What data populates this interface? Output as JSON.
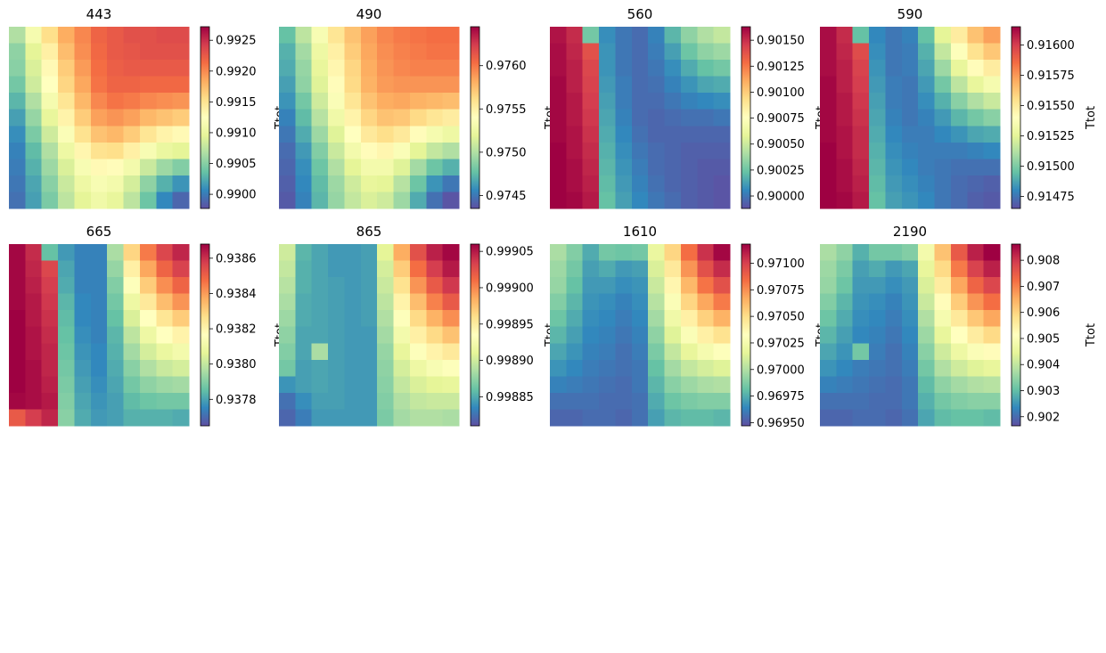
{
  "colormap": {
    "name": "Spectral_r",
    "stops": [
      "#5e4fa2",
      "#3288bd",
      "#66c2a5",
      "#abdda4",
      "#e6f598",
      "#ffffbf",
      "#fee08b",
      "#fdae61",
      "#f46d43",
      "#d53e4f",
      "#9e0142"
    ]
  },
  "chart_data": [
    {
      "type": "heatmap",
      "title": "443",
      "colorbar_label": "Ttot",
      "vmin": 0.98977,
      "vmax": 0.99272,
      "ticks": [
        "0.9900",
        "0.9905",
        "0.9910",
        "0.9915",
        "0.9920",
        "0.9925"
      ],
      "grid": [
        [
          0.31,
          0.46,
          0.6,
          0.7,
          0.76,
          0.82,
          0.84,
          0.86,
          0.86,
          0.87,
          0.87
        ],
        [
          0.26,
          0.4,
          0.55,
          0.67,
          0.75,
          0.81,
          0.84,
          0.85,
          0.86,
          0.86,
          0.86
        ],
        [
          0.25,
          0.38,
          0.52,
          0.64,
          0.73,
          0.8,
          0.83,
          0.84,
          0.84,
          0.84,
          0.84
        ],
        [
          0.22,
          0.36,
          0.5,
          0.62,
          0.71,
          0.79,
          0.82,
          0.82,
          0.81,
          0.81,
          0.81
        ],
        [
          0.18,
          0.31,
          0.46,
          0.58,
          0.68,
          0.76,
          0.79,
          0.78,
          0.76,
          0.75,
          0.74
        ],
        [
          0.14,
          0.27,
          0.41,
          0.54,
          0.64,
          0.72,
          0.74,
          0.72,
          0.68,
          0.66,
          0.64
        ],
        [
          0.11,
          0.23,
          0.36,
          0.48,
          0.59,
          0.66,
          0.68,
          0.64,
          0.58,
          0.54,
          0.52
        ],
        [
          0.09,
          0.19,
          0.31,
          0.43,
          0.53,
          0.59,
          0.6,
          0.55,
          0.47,
          0.42,
          0.4
        ],
        [
          0.08,
          0.17,
          0.28,
          0.38,
          0.47,
          0.52,
          0.51,
          0.45,
          0.35,
          0.28,
          0.24
        ],
        [
          0.07,
          0.15,
          0.25,
          0.35,
          0.43,
          0.47,
          0.45,
          0.37,
          0.26,
          0.17,
          0.12
        ],
        [
          0.06,
          0.14,
          0.23,
          0.33,
          0.4,
          0.44,
          0.41,
          0.33,
          0.21,
          0.1,
          0.04
        ]
      ]
    },
    {
      "type": "heatmap",
      "title": "490",
      "colorbar_label": "Ttot",
      "vmin": 0.97435,
      "vmax": 0.97645,
      "ticks": [
        "0.9745",
        "0.9750",
        "0.9755",
        "0.9760"
      ],
      "grid": [
        [
          0.2,
          0.33,
          0.47,
          0.58,
          0.66,
          0.72,
          0.76,
          0.78,
          0.79,
          0.8,
          0.8
        ],
        [
          0.17,
          0.29,
          0.43,
          0.55,
          0.64,
          0.71,
          0.75,
          0.77,
          0.78,
          0.79,
          0.79
        ],
        [
          0.16,
          0.27,
          0.41,
          0.53,
          0.62,
          0.7,
          0.74,
          0.76,
          0.77,
          0.77,
          0.77
        ],
        [
          0.14,
          0.26,
          0.39,
          0.51,
          0.61,
          0.69,
          0.73,
          0.74,
          0.74,
          0.74,
          0.74
        ],
        [
          0.12,
          0.22,
          0.36,
          0.48,
          0.58,
          0.66,
          0.7,
          0.71,
          0.69,
          0.68,
          0.67
        ],
        [
          0.09,
          0.19,
          0.32,
          0.44,
          0.54,
          0.62,
          0.66,
          0.65,
          0.61,
          0.58,
          0.56
        ],
        [
          0.07,
          0.16,
          0.28,
          0.39,
          0.5,
          0.57,
          0.6,
          0.57,
          0.51,
          0.46,
          0.43
        ],
        [
          0.05,
          0.13,
          0.24,
          0.35,
          0.45,
          0.51,
          0.53,
          0.48,
          0.4,
          0.34,
          0.31
        ],
        [
          0.04,
          0.11,
          0.21,
          0.31,
          0.4,
          0.45,
          0.45,
          0.39,
          0.29,
          0.21,
          0.17
        ],
        [
          0.03,
          0.1,
          0.19,
          0.28,
          0.36,
          0.41,
          0.4,
          0.32,
          0.21,
          0.12,
          0.07
        ],
        [
          0.02,
          0.09,
          0.18,
          0.27,
          0.34,
          0.38,
          0.36,
          0.28,
          0.16,
          0.06,
          0.01
        ]
      ]
    },
    {
      "type": "heatmap",
      "title": "560",
      "colorbar_label": "Ttot",
      "vmin": 0.89988,
      "vmax": 0.90163,
      "ticks": [
        "0.90000",
        "0.90025",
        "0.90050",
        "0.90075",
        "0.90100",
        "0.90125",
        "0.90150"
      ],
      "grid": [
        [
          0.97,
          0.93,
          0.22,
          0.11,
          0.07,
          0.05,
          0.09,
          0.18,
          0.26,
          0.31,
          0.34
        ],
        [
          0.98,
          0.94,
          0.86,
          0.12,
          0.07,
          0.05,
          0.08,
          0.14,
          0.21,
          0.26,
          0.28
        ],
        [
          0.98,
          0.95,
          0.88,
          0.12,
          0.07,
          0.05,
          0.07,
          0.11,
          0.16,
          0.2,
          0.22
        ],
        [
          0.99,
          0.95,
          0.89,
          0.13,
          0.08,
          0.05,
          0.06,
          0.09,
          0.12,
          0.15,
          0.16
        ],
        [
          0.99,
          0.96,
          0.9,
          0.14,
          0.08,
          0.05,
          0.05,
          0.07,
          0.09,
          0.1,
          0.11
        ],
        [
          0.99,
          0.96,
          0.91,
          0.15,
          0.09,
          0.05,
          0.04,
          0.05,
          0.06,
          0.06,
          0.07
        ],
        [
          0.99,
          0.97,
          0.92,
          0.16,
          0.1,
          0.06,
          0.04,
          0.04,
          0.04,
          0.04,
          0.04
        ],
        [
          1.0,
          0.97,
          0.93,
          0.17,
          0.11,
          0.07,
          0.05,
          0.04,
          0.03,
          0.03,
          0.03
        ],
        [
          1.0,
          0.98,
          0.94,
          0.18,
          0.12,
          0.08,
          0.05,
          0.04,
          0.03,
          0.02,
          0.02
        ],
        [
          1.0,
          0.98,
          0.95,
          0.19,
          0.13,
          0.09,
          0.06,
          0.04,
          0.03,
          0.02,
          0.01
        ],
        [
          1.0,
          0.99,
          0.96,
          0.2,
          0.14,
          0.1,
          0.07,
          0.05,
          0.03,
          0.02,
          0.01
        ]
      ]
    },
    {
      "type": "heatmap",
      "title": "590",
      "colorbar_label": "Ttot",
      "vmin": 0.91465,
      "vmax": 0.91615,
      "ticks": [
        "0.91475",
        "0.91500",
        "0.91525",
        "0.91550",
        "0.91575",
        "0.91600"
      ],
      "grid": [
        [
          0.98,
          0.93,
          0.2,
          0.1,
          0.07,
          0.09,
          0.2,
          0.4,
          0.56,
          0.66,
          0.72
        ],
        [
          0.98,
          0.94,
          0.87,
          0.11,
          0.07,
          0.08,
          0.17,
          0.34,
          0.49,
          0.59,
          0.65
        ],
        [
          0.98,
          0.95,
          0.89,
          0.12,
          0.07,
          0.08,
          0.15,
          0.28,
          0.41,
          0.51,
          0.56
        ],
        [
          0.99,
          0.95,
          0.9,
          0.13,
          0.08,
          0.07,
          0.13,
          0.22,
          0.33,
          0.41,
          0.46
        ],
        [
          0.99,
          0.96,
          0.91,
          0.14,
          0.08,
          0.07,
          0.11,
          0.17,
          0.25,
          0.31,
          0.35
        ],
        [
          0.99,
          0.96,
          0.92,
          0.15,
          0.09,
          0.07,
          0.09,
          0.13,
          0.18,
          0.22,
          0.25
        ],
        [
          0.99,
          0.97,
          0.93,
          0.16,
          0.1,
          0.08,
          0.08,
          0.1,
          0.12,
          0.15,
          0.16
        ],
        [
          1.0,
          0.97,
          0.93,
          0.17,
          0.11,
          0.09,
          0.08,
          0.08,
          0.08,
          0.09,
          0.1
        ],
        [
          1.0,
          0.98,
          0.94,
          0.18,
          0.12,
          0.1,
          0.08,
          0.07,
          0.06,
          0.06,
          0.06
        ],
        [
          1.0,
          0.98,
          0.95,
          0.19,
          0.13,
          0.11,
          0.09,
          0.07,
          0.05,
          0.04,
          0.03
        ],
        [
          1.0,
          0.99,
          0.96,
          0.2,
          0.14,
          0.12,
          0.1,
          0.07,
          0.05,
          0.03,
          0.02
        ]
      ]
    },
    {
      "type": "heatmap",
      "title": "665",
      "colorbar_label": "Ttot",
      "vmin": 0.93765,
      "vmax": 0.93868,
      "ticks": [
        "0.9378",
        "0.9380",
        "0.9382",
        "0.9384",
        "0.9386"
      ],
      "grid": [
        [
          0.99,
          0.93,
          0.2,
          0.13,
          0.09,
          0.09,
          0.3,
          0.62,
          0.78,
          0.88,
          0.94
        ],
        [
          0.99,
          0.94,
          0.88,
          0.15,
          0.09,
          0.09,
          0.27,
          0.55,
          0.71,
          0.82,
          0.89
        ],
        [
          0.99,
          0.95,
          0.9,
          0.16,
          0.09,
          0.09,
          0.24,
          0.49,
          0.64,
          0.75,
          0.82
        ],
        [
          0.99,
          0.96,
          0.91,
          0.18,
          0.1,
          0.09,
          0.22,
          0.43,
          0.57,
          0.67,
          0.74
        ],
        [
          1.0,
          0.96,
          0.92,
          0.19,
          0.1,
          0.09,
          0.2,
          0.38,
          0.5,
          0.58,
          0.64
        ],
        [
          1.0,
          0.97,
          0.93,
          0.2,
          0.11,
          0.09,
          0.18,
          0.33,
          0.43,
          0.5,
          0.54
        ],
        [
          1.0,
          0.97,
          0.94,
          0.21,
          0.12,
          0.1,
          0.17,
          0.29,
          0.37,
          0.42,
          0.45
        ],
        [
          1.0,
          0.98,
          0.94,
          0.22,
          0.13,
          0.1,
          0.16,
          0.25,
          0.31,
          0.35,
          0.37
        ],
        [
          1.0,
          0.98,
          0.95,
          0.23,
          0.14,
          0.11,
          0.15,
          0.22,
          0.26,
          0.28,
          0.29
        ],
        [
          0.99,
          0.98,
          0.96,
          0.24,
          0.15,
          0.12,
          0.14,
          0.19,
          0.21,
          0.22,
          0.22
        ],
        [
          0.84,
          0.9,
          0.94,
          0.25,
          0.16,
          0.13,
          0.14,
          0.17,
          0.17,
          0.17,
          0.16
        ]
      ]
    },
    {
      "type": "heatmap",
      "title": "865",
      "colorbar_label": "Ttot",
      "vmin": 0.99881,
      "vmax": 0.99906,
      "ticks": [
        "0.99885",
        "0.99890",
        "0.99895",
        "0.99900",
        "0.99905"
      ],
      "grid": [
        [
          0.36,
          0.18,
          0.15,
          0.13,
          0.13,
          0.14,
          0.4,
          0.7,
          0.86,
          0.95,
          0.99
        ],
        [
          0.34,
          0.17,
          0.15,
          0.13,
          0.13,
          0.14,
          0.37,
          0.64,
          0.8,
          0.9,
          0.96
        ],
        [
          0.32,
          0.17,
          0.15,
          0.14,
          0.13,
          0.14,
          0.35,
          0.59,
          0.74,
          0.84,
          0.91
        ],
        [
          0.3,
          0.16,
          0.15,
          0.14,
          0.13,
          0.14,
          0.33,
          0.54,
          0.67,
          0.77,
          0.84
        ],
        [
          0.28,
          0.16,
          0.15,
          0.14,
          0.13,
          0.14,
          0.31,
          0.49,
          0.61,
          0.69,
          0.75
        ],
        [
          0.26,
          0.15,
          0.15,
          0.14,
          0.13,
          0.13,
          0.29,
          0.45,
          0.55,
          0.61,
          0.66
        ],
        [
          0.24,
          0.15,
          0.3,
          0.14,
          0.13,
          0.13,
          0.27,
          0.41,
          0.49,
          0.54,
          0.57
        ],
        [
          0.22,
          0.14,
          0.15,
          0.14,
          0.13,
          0.13,
          0.26,
          0.37,
          0.43,
          0.47,
          0.49
        ],
        [
          0.12,
          0.14,
          0.15,
          0.14,
          0.13,
          0.13,
          0.25,
          0.34,
          0.38,
          0.4,
          0.41
        ],
        [
          0.06,
          0.11,
          0.14,
          0.14,
          0.13,
          0.13,
          0.24,
          0.31,
          0.34,
          0.35,
          0.35
        ],
        [
          0.04,
          0.08,
          0.13,
          0.13,
          0.13,
          0.13,
          0.23,
          0.29,
          0.31,
          0.31,
          0.3
        ]
      ]
    },
    {
      "type": "heatmap",
      "title": "1610",
      "colorbar_label": "Ttot",
      "vmin": 0.96947,
      "vmax": 0.97118,
      "ticks": [
        "0.96950",
        "0.96975",
        "0.97000",
        "0.97025",
        "0.97050",
        "0.97075",
        "0.97100"
      ],
      "grid": [
        [
          0.3,
          0.24,
          0.16,
          0.22,
          0.21,
          0.22,
          0.42,
          0.62,
          0.8,
          0.92,
          0.99
        ],
        [
          0.28,
          0.22,
          0.14,
          0.16,
          0.13,
          0.14,
          0.38,
          0.57,
          0.74,
          0.86,
          0.93
        ],
        [
          0.27,
          0.2,
          0.13,
          0.13,
          0.11,
          0.12,
          0.35,
          0.53,
          0.68,
          0.79,
          0.86
        ],
        [
          0.24,
          0.18,
          0.12,
          0.11,
          0.09,
          0.11,
          0.32,
          0.48,
          0.62,
          0.71,
          0.78
        ],
        [
          0.21,
          0.16,
          0.11,
          0.1,
          0.08,
          0.1,
          0.29,
          0.44,
          0.55,
          0.63,
          0.69
        ],
        [
          0.18,
          0.14,
          0.1,
          0.09,
          0.07,
          0.09,
          0.26,
          0.39,
          0.48,
          0.55,
          0.59
        ],
        [
          0.15,
          0.12,
          0.09,
          0.08,
          0.06,
          0.08,
          0.23,
          0.34,
          0.41,
          0.46,
          0.49
        ],
        [
          0.12,
          0.1,
          0.08,
          0.07,
          0.06,
          0.07,
          0.2,
          0.29,
          0.34,
          0.37,
          0.39
        ],
        [
          0.09,
          0.08,
          0.07,
          0.06,
          0.05,
          0.07,
          0.18,
          0.25,
          0.28,
          0.3,
          0.31
        ],
        [
          0.06,
          0.06,
          0.06,
          0.05,
          0.05,
          0.06,
          0.16,
          0.21,
          0.23,
          0.24,
          0.24
        ],
        [
          0.04,
          0.04,
          0.05,
          0.05,
          0.04,
          0.06,
          0.14,
          0.18,
          0.19,
          0.19,
          0.18
        ]
      ]
    },
    {
      "type": "heatmap",
      "title": "2190",
      "colorbar_label": "Ttot",
      "vmin": 0.90165,
      "vmax": 0.90862,
      "ticks": [
        "0.902",
        "0.903",
        "0.904",
        "0.905",
        "0.906",
        "0.907",
        "0.908"
      ],
      "grid": [
        [
          0.3,
          0.26,
          0.17,
          0.22,
          0.22,
          0.24,
          0.45,
          0.66,
          0.84,
          0.95,
          1.0
        ],
        [
          0.28,
          0.23,
          0.14,
          0.16,
          0.13,
          0.15,
          0.41,
          0.61,
          0.78,
          0.89,
          0.95
        ],
        [
          0.27,
          0.21,
          0.13,
          0.13,
          0.11,
          0.13,
          0.38,
          0.56,
          0.71,
          0.82,
          0.88
        ],
        [
          0.24,
          0.18,
          0.12,
          0.11,
          0.09,
          0.12,
          0.35,
          0.51,
          0.64,
          0.74,
          0.8
        ],
        [
          0.21,
          0.16,
          0.11,
          0.1,
          0.08,
          0.11,
          0.31,
          0.46,
          0.57,
          0.65,
          0.71
        ],
        [
          0.18,
          0.14,
          0.1,
          0.09,
          0.07,
          0.1,
          0.28,
          0.41,
          0.5,
          0.56,
          0.61
        ],
        [
          0.15,
          0.12,
          0.22,
          0.08,
          0.06,
          0.09,
          0.25,
          0.36,
          0.43,
          0.48,
          0.51
        ],
        [
          0.12,
          0.1,
          0.08,
          0.07,
          0.06,
          0.08,
          0.22,
          0.31,
          0.36,
          0.39,
          0.41
        ],
        [
          0.09,
          0.08,
          0.07,
          0.06,
          0.05,
          0.07,
          0.19,
          0.26,
          0.29,
          0.31,
          0.32
        ],
        [
          0.06,
          0.06,
          0.06,
          0.05,
          0.05,
          0.07,
          0.17,
          0.22,
          0.24,
          0.25,
          0.25
        ],
        [
          0.04,
          0.04,
          0.05,
          0.05,
          0.04,
          0.06,
          0.15,
          0.19,
          0.2,
          0.2,
          0.19
        ]
      ]
    }
  ]
}
